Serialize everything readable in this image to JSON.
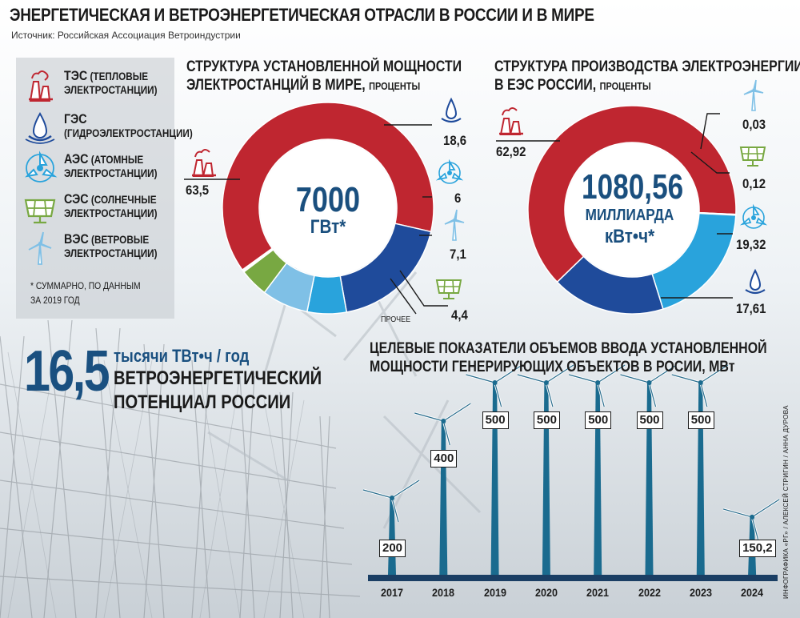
{
  "title": "ЭНЕРГЕТИЧЕСКАЯ И ВЕТРОЭНЕРГЕТИЧЕСКАЯ ОТРАСЛИ В РОССИИ И В МИРЕ",
  "source": "Источник: Российская Ассоциация Ветроиндустрии",
  "colors": {
    "tes": "#bf2630",
    "ges": "#1f4b9b",
    "aes": "#29a3dc",
    "ses": "#78a842",
    "ves": "#7fc0e6",
    "accent": "#1a5080"
  },
  "legend": [
    {
      "abbr": "ТЭС",
      "line1": "(ТЕПЛОВЫЕ",
      "line2": "ЭЛЕКТРОСТАНЦИИ)",
      "icon": "thermal-plant-icon"
    },
    {
      "abbr": "ГЭС",
      "line1": "",
      "line2": "(ГИДРОЭЛЕКТРОСТАНЦИИ)",
      "icon": "water-drop-icon"
    },
    {
      "abbr": "АЭС",
      "line1": "(АТОМНЫЕ",
      "line2": "ЭЛЕКТРОСТАНЦИИ)",
      "icon": "atom-icon"
    },
    {
      "abbr": "СЭС",
      "line1": "(СОЛНЕЧНЫЕ",
      "line2": "ЭЛЕКТРОСТАНЦИИ)",
      "icon": "solar-panel-icon"
    },
    {
      "abbr": "ВЭС",
      "line1": "(ВЕТРОВЫЕ",
      "line2": "ЭЛЕКТРОСТАНЦИИ)",
      "icon": "wind-turbine-icon"
    }
  ],
  "footnote": {
    "line1": "* СУММАРНО, ПО ДАННЫМ",
    "line2": "ЗА 2019 ГОД"
  },
  "potential": {
    "value": "16,5",
    "unit": "тысячи ТВт•ч / год",
    "line1": "ВЕТРОЭНЕРГЕТИЧЕСКИЙ",
    "line2": "ПОТЕНЦИАЛ РОССИИ"
  },
  "credits": "ИНФОГРАФИКА «РГ» / АЛЕКСЕЙ СТРИГИН / АННА ДУРОВА",
  "chart_data": [
    {
      "type": "pie",
      "title": "СТРУКТУРА УСТАНОВЛЕННОЙ МОЩНОСТИ",
      "title2": "ЭЛЕКТРОСТАНЦИЙ В МИРЕ,",
      "units": "ПРОЦЕНТЫ",
      "center_value": "7000",
      "center_unit": "ГВт*",
      "other_label": "ПРОЧЕЕ",
      "series": [
        {
          "key": "ses",
          "label": "4,4",
          "value": 4.4
        },
        {
          "key": "other",
          "value": 0.4
        },
        {
          "key": "tes",
          "label": "63,5",
          "value": 63.5
        },
        {
          "key": "ges",
          "label": "18,6",
          "value": 18.6
        },
        {
          "key": "aes",
          "label": "6",
          "value": 6
        },
        {
          "key": "ves",
          "label": "7,1",
          "value": 7.1
        }
      ]
    },
    {
      "type": "pie",
      "title": "СТРУКТУРА ПРОИЗВОДСТВА ЭЛЕКТРОЭНЕРГИИ",
      "title2": "В ЕЭС РОССИИ,",
      "units": "ПРОЦЕНТЫ",
      "center_value": "1080,56",
      "center_unit1": "МИЛЛИАРДА",
      "center_unit2": "кВт•ч*",
      "series": [
        {
          "key": "tes",
          "label": "62,92",
          "value": 62.92
        },
        {
          "key": "ves",
          "label": "0,03",
          "value": 0.03
        },
        {
          "key": "ses",
          "label": "0,12",
          "value": 0.12
        },
        {
          "key": "aes",
          "label": "19,32",
          "value": 19.32
        },
        {
          "key": "ges",
          "label": "17,61",
          "value": 17.61
        }
      ]
    },
    {
      "type": "bar",
      "title": "ЦЕЛЕВЫЕ ПОКАЗАТЕЛИ ОБЪЕМОВ ВВОДА УСТАНОВЛЕННОЙ",
      "title2": "МОЩНОСТИ ГЕНЕРИРУЮЩИХ ОБЪЕКТОВ В РОСИИ, МВт",
      "categories": [
        "2017",
        "2018",
        "2019",
        "2020",
        "2021",
        "2022",
        "2023",
        "2024"
      ],
      "values": [
        200,
        400,
        500,
        500,
        500,
        500,
        500,
        150.2
      ],
      "labels": [
        "200",
        "400",
        "500",
        "500",
        "500",
        "500",
        "500",
        "150,2"
      ]
    }
  ]
}
